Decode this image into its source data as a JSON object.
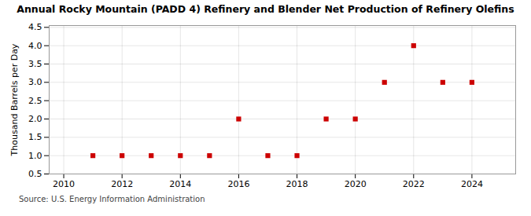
{
  "chart_data": {
    "type": "scatter",
    "title": "Annual Rocky Mountain (PADD 4) Refinery and Blender Net Production of Refinery Olefins",
    "ylabel": "Thousand Barrels per Day",
    "source": "Source: U.S. Energy Information Administration",
    "x": [
      2011,
      2012,
      2013,
      2014,
      2015,
      2016,
      2017,
      2018,
      2019,
      2020,
      2021,
      2022,
      2023,
      2024
    ],
    "values": [
      1.0,
      1.0,
      1.0,
      1.0,
      1.0,
      2.0,
      1.0,
      1.0,
      2.0,
      2.0,
      3.0,
      4.0,
      3.0,
      3.0
    ],
    "color": "#cc0000",
    "marker": "square",
    "xlim": [
      2009.5,
      2025.5
    ],
    "ylim": [
      0.5,
      4.55
    ],
    "xticks": [
      2010,
      2012,
      2014,
      2016,
      2018,
      2020,
      2022,
      2024
    ],
    "yticks": [
      0.5,
      {
        "value": 1.0,
        "label": "1.0"
      },
      1.5,
      {
        "value": 2.0,
        "label": "2.0"
      },
      2.5,
      {
        "value": 3.0,
        "label": "3.0"
      },
      3.5,
      {
        "value": 4.0,
        "label": "4.0"
      },
      4.5
    ],
    "grid": true
  }
}
